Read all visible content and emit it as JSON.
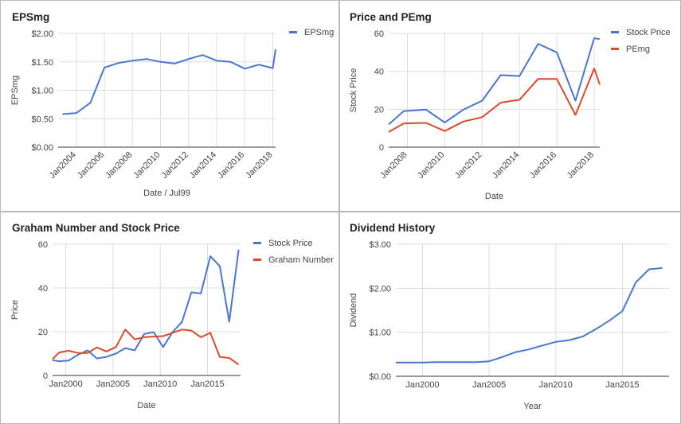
{
  "colors": {
    "blue": "#4a76d2",
    "red": "#dc4a2c",
    "grid": "#dddddd",
    "axis": "#333333",
    "text": "#444444"
  },
  "chart_data": [
    {
      "id": "eps",
      "type": "line",
      "title": "EPSmg",
      "xlabel": "Date / Jul99",
      "ylabel": "EPSmg",
      "ylim": [
        0,
        2
      ],
      "y_ticks": [
        0,
        0.5,
        1,
        1.5,
        2
      ],
      "y_tick_labels": [
        "$0.00",
        "$0.50",
        "$1.00",
        "$1.50",
        "$2.00"
      ],
      "xlim": [
        2002.7,
        2018.2
      ],
      "x_ticks": [
        2004,
        2006,
        2008,
        2010,
        2012,
        2014,
        2016,
        2018
      ],
      "x_tick_labels": [
        "Jan2004",
        "Jan2006",
        "Jan2008",
        "Jan2010",
        "Jan2012",
        "Jan2014",
        "Jan2016",
        "Jan2018"
      ],
      "x_label_rotate": true,
      "grid": true,
      "legend": "top-right",
      "series": [
        {
          "name": "EPSmg",
          "color": "#4a76d2",
          "x": [
            2003,
            2004,
            2005,
            2006,
            2007,
            2008,
            2009,
            2010,
            2011,
            2012,
            2013,
            2014,
            2015,
            2016,
            2017,
            2018,
            2018.2
          ],
          "y": [
            0.58,
            0.6,
            0.78,
            1.4,
            1.48,
            1.52,
            1.55,
            1.5,
            1.47,
            1.55,
            1.62,
            1.52,
            1.5,
            1.38,
            1.45,
            1.39,
            1.72
          ]
        }
      ]
    },
    {
      "id": "price-pe",
      "type": "line",
      "title": "Price and PEmg",
      "xlabel": "Date",
      "ylabel": "Stock Price",
      "ylim": [
        0,
        60
      ],
      "y_ticks": [
        0,
        20,
        40,
        60
      ],
      "y_tick_labels": [
        "0",
        "20",
        "40",
        "60"
      ],
      "xlim": [
        2007,
        2018.3
      ],
      "x_ticks": [
        2008,
        2010,
        2012,
        2014,
        2016,
        2018
      ],
      "x_tick_labels": [
        "Jan2008",
        "Jan2010",
        "Jan2012",
        "Jan2014",
        "Jan2016",
        "Jan2018"
      ],
      "x_label_rotate": true,
      "grid": true,
      "legend": "top-right",
      "series": [
        {
          "name": "Stock Price",
          "color": "#4a76d2",
          "x": [
            2007,
            2007.8,
            2009,
            2010,
            2011,
            2012,
            2013,
            2014,
            2015,
            2016,
            2017,
            2018,
            2018.3
          ],
          "y": [
            12,
            19,
            19.8,
            13,
            19.8,
            24.5,
            38,
            37.5,
            54.5,
            50,
            24.5,
            57.5,
            57
          ]
        },
        {
          "name": "PEmg",
          "color": "#dc4a2c",
          "x": [
            2007,
            2007.8,
            2009,
            2010,
            2011,
            2012,
            2013,
            2014,
            2015,
            2016,
            2017,
            2018,
            2018.3
          ],
          "y": [
            8,
            12.5,
            12.8,
            8.5,
            13.5,
            15.8,
            23.5,
            25,
            36,
            36,
            17,
            41.5,
            33
          ]
        }
      ]
    },
    {
      "id": "graham",
      "type": "line",
      "title": "Graham Number and Stock Price",
      "xlabel": "Date",
      "ylabel": "Price",
      "ylim": [
        0,
        60
      ],
      "y_ticks": [
        0,
        20,
        40,
        60
      ],
      "y_tick_labels": [
        "0",
        "20",
        "40",
        "60"
      ],
      "xlim": [
        1998.6,
        2018.5
      ],
      "x_ticks": [
        2000,
        2005,
        2010,
        2015
      ],
      "x_tick_labels": [
        "Jan2000",
        "Jan2005",
        "Jan2010",
        "Jan2015"
      ],
      "x_label_rotate": false,
      "grid": true,
      "legend": "top-right",
      "series": [
        {
          "name": "Stock Price",
          "color": "#4a76d2",
          "x": [
            1998.6,
            1999.3,
            2000.3,
            2001.3,
            2002.3,
            2003.3,
            2004.3,
            2005.3,
            2006.3,
            2007.3,
            2008.3,
            2009.3,
            2010.3,
            2011.3,
            2012.3,
            2013.3,
            2014.3,
            2015.3,
            2016.3,
            2017.3,
            2018.3
          ],
          "y": [
            7,
            6.5,
            6.8,
            9.5,
            11.5,
            7.8,
            8.5,
            10,
            12.5,
            11.5,
            19,
            19.8,
            13,
            19.8,
            24.5,
            38,
            37.5,
            54.5,
            50,
            24.5,
            57.5
          ]
        },
        {
          "name": "Graham Number",
          "color": "#dc4a2c",
          "x": [
            1998.6,
            1999.3,
            2000.3,
            2001.3,
            2002.3,
            2003.3,
            2004.3,
            2005.3,
            2006.3,
            2007.3,
            2008.3,
            2009.3,
            2010.3,
            2011.3,
            2012.3,
            2013.3,
            2014.3,
            2015.3,
            2016.3,
            2017.3,
            2018.3
          ],
          "y": [
            7.5,
            10.5,
            11.3,
            10.3,
            10.3,
            12.8,
            11,
            13,
            21,
            16.5,
            17.5,
            17.8,
            18,
            19.5,
            21,
            20.5,
            17.5,
            19.5,
            8.5,
            8,
            5
          ]
        }
      ]
    },
    {
      "id": "dividend",
      "type": "line",
      "title": "Dividend History",
      "xlabel": "Year",
      "ylabel": "Dividend",
      "ylim": [
        0,
        3
      ],
      "y_ticks": [
        0,
        1,
        2,
        3
      ],
      "y_tick_labels": [
        "$0.00",
        "$1.00",
        "$2.00",
        "$3.00"
      ],
      "xlim": [
        1998,
        2018.5
      ],
      "x_ticks": [
        2000,
        2005,
        2010,
        2015
      ],
      "x_tick_labels": [
        "Jan2000",
        "Jan2005",
        "Jan2010",
        "Jan2015"
      ],
      "x_label_rotate": false,
      "grid": true,
      "legend": "none",
      "series": [
        {
          "name": "",
          "color": "#4a76d2",
          "x": [
            1998,
            1999,
            2000,
            2001,
            2002,
            2003,
            2004,
            2005,
            2006,
            2007,
            2008,
            2009,
            2010,
            2011,
            2012,
            2013,
            2014,
            2015,
            2016,
            2017,
            2018
          ],
          "y": [
            0.31,
            0.31,
            0.31,
            0.32,
            0.32,
            0.32,
            0.32,
            0.34,
            0.44,
            0.55,
            0.61,
            0.7,
            0.78,
            0.82,
            0.9,
            1.07,
            1.26,
            1.48,
            2.13,
            2.43,
            2.46
          ]
        }
      ]
    }
  ]
}
